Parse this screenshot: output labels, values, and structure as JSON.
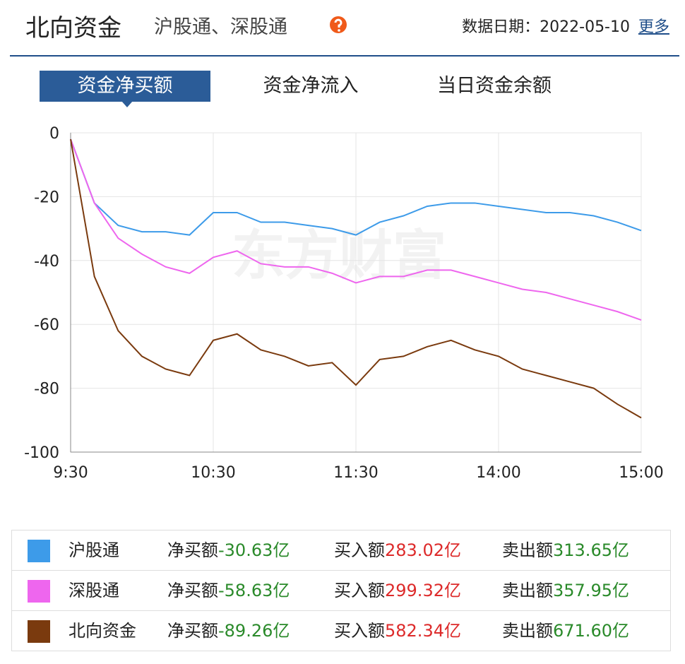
{
  "header": {
    "title": "北向资金",
    "subtitle": "沪股通、深股通",
    "date_label": "数据日期：2022-05-10",
    "more": "更多"
  },
  "tabs": [
    "资金净买额",
    "资金净流入",
    "当日资金余额"
  ],
  "watermark": "东方财富",
  "chart_data": {
    "type": "line",
    "x": [
      0,
      10,
      20,
      30,
      40,
      50,
      60,
      70,
      80,
      90,
      100,
      110,
      120,
      130,
      140,
      150,
      160,
      170,
      180,
      190,
      200,
      210,
      220,
      230,
      240
    ],
    "xlim": [
      0,
      240
    ],
    "xticks": [
      {
        "value": 0,
        "label": "9:30"
      },
      {
        "value": 60,
        "label": "10:30"
      },
      {
        "value": 120,
        "label": "11:30"
      },
      {
        "value": 180,
        "label": "14:00"
      },
      {
        "value": 240,
        "label": "15:00"
      }
    ],
    "ylim": [
      -100,
      0
    ],
    "yticks": [
      0,
      -20,
      -40,
      -60,
      -80,
      -100
    ],
    "grid": true,
    "series": [
      {
        "name": "沪股通",
        "color": "#3d9be9",
        "values": [
          -2,
          -22,
          -29,
          -31,
          -31,
          -32,
          -25,
          -25,
          -28,
          -28,
          -29,
          -30,
          -32,
          -28,
          -26,
          -23,
          -22,
          -22,
          -23,
          -24,
          -25,
          -25,
          -26,
          -28,
          -30.63
        ]
      },
      {
        "name": "深股通",
        "color": "#ee66ee",
        "values": [
          -2,
          -22,
          -33,
          -38,
          -42,
          -44,
          -39,
          -37,
          -41,
          -42,
          -42,
          -44,
          -47,
          -45,
          -45,
          -43,
          -43,
          -45,
          -47,
          -49,
          -50,
          -52,
          -54,
          -56,
          -58.63
        ]
      },
      {
        "name": "北向资金",
        "color": "#7a3a0e",
        "values": [
          -2,
          -45,
          -62,
          -70,
          -74,
          -76,
          -65,
          -63,
          -68,
          -70,
          -73,
          -72,
          -79,
          -71,
          -70,
          -67,
          -65,
          -68,
          -70,
          -74,
          -76,
          -78,
          -80,
          -85,
          -89.26
        ]
      }
    ]
  },
  "summary": {
    "labels": [
      "净买额",
      "买入额",
      "卖出额"
    ],
    "rows": [
      [
        "-30.63亿",
        "283.02亿",
        "313.65亿"
      ],
      [
        "-58.63亿",
        "299.32亿",
        "357.95亿"
      ],
      [
        "-89.26亿",
        "582.34亿",
        "671.60亿"
      ]
    ]
  }
}
